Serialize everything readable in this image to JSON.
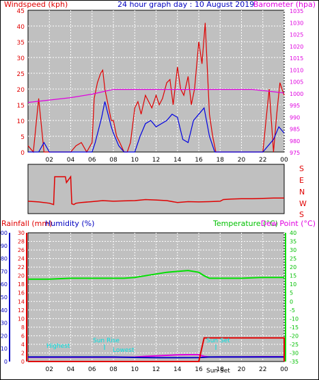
{
  "header": {
    "windspeed_label": "Windspeed (kph)",
    "title": "24 hour graph day : 10 August 2019",
    "barometer_label": "Barometer (hpa)"
  },
  "lower_header": {
    "rainfall_label": "Rainfall (mm)",
    "humidity_label": "Humidity (%)",
    "temperature_label": "Temperature (°C)",
    "dewpoint_label": "Dew Point (°C)"
  },
  "direction_labels": [
    "S",
    "E",
    "N",
    "W",
    "S"
  ],
  "annotations": {
    "highest": "Highest",
    "lowest": "Lowest",
    "sunrise": "Sun Rise",
    "sunset": "Sun Set",
    "sunset_tick": "Sun Set"
  },
  "colors": {
    "windspeed": "#e00000",
    "wind_avg": "#0000e0",
    "barometer": "#e000e0",
    "rain": "#e00000",
    "humidity": "#0000c0",
    "temperature": "#00e000",
    "dewpoint": "#e000e0",
    "plot_bg": "#c0c0c0",
    "grid": "#ffffff",
    "cyan": "#00e0e0"
  },
  "chart_data": [
    {
      "type": "line",
      "title": "24 hour graph day : 10 August 2019",
      "x_ticks": [
        "02",
        "04",
        "06",
        "08",
        "10",
        "12",
        "14",
        "16",
        "18",
        "20",
        "22",
        "00"
      ],
      "x_range_hours": [
        0,
        24
      ],
      "left_axis": {
        "label": "Windspeed (kph)",
        "range": [
          0,
          45
        ],
        "ticks": [
          0,
          5,
          10,
          15,
          20,
          25,
          30,
          35,
          40,
          45
        ]
      },
      "right_axis": {
        "label": "Barometer (hpa)",
        "range": [
          975,
          1035
        ],
        "ticks": [
          975,
          980,
          985,
          990,
          995,
          1000,
          1005,
          1010,
          1015,
          1020,
          1025,
          1030,
          1035
        ]
      },
      "grid": true,
      "series": [
        {
          "name": "Windspeed (kph)",
          "axis": "left",
          "x": [
            0,
            0.5,
            1,
            1.5,
            2,
            2.5,
            3,
            3.5,
            4,
            4.5,
            5,
            5.5,
            6,
            6.2,
            6.5,
            6.8,
            7,
            7.2,
            7.5,
            7.8,
            8,
            8.3,
            8.6,
            9,
            9.3,
            9.6,
            10,
            10.3,
            10.6,
            11,
            11.3,
            11.6,
            12,
            12.3,
            12.6,
            13,
            13.3,
            13.6,
            14,
            14.3,
            14.6,
            15,
            15.3,
            15.6,
            16,
            16.3,
            16.6,
            17,
            17.3,
            17.6,
            18,
            19,
            20,
            21,
            22,
            22.3,
            22.6,
            23,
            23.3,
            23.6,
            24
          ],
          "values": [
            2,
            0,
            17,
            0,
            0,
            0,
            0,
            0,
            0,
            2,
            3,
            0,
            3,
            17,
            22,
            25,
            26,
            20,
            15,
            10,
            10,
            5,
            3,
            0,
            0,
            3,
            14,
            16,
            12,
            18,
            16,
            14,
            18,
            15,
            17,
            22,
            23,
            15,
            27,
            20,
            18,
            24,
            15,
            20,
            35,
            28,
            41,
            12,
            5,
            0,
            0,
            0,
            0,
            0,
            0,
            10,
            20,
            0,
            12,
            22,
            18
          ]
        },
        {
          "name": "Wind average",
          "axis": "left",
          "x": [
            0,
            1,
            1.5,
            2,
            3,
            4,
            5,
            6,
            6.3,
            6.6,
            6.9,
            7.2,
            7.5,
            7.8,
            8,
            8.5,
            9,
            10,
            10.5,
            11,
            11.5,
            12,
            12.5,
            13,
            13.5,
            14,
            14.5,
            15,
            15.5,
            16,
            16.5,
            17,
            17.5,
            18,
            19,
            20,
            21,
            22,
            22.5,
            23,
            23.5,
            24
          ],
          "values": [
            0,
            0,
            3,
            0,
            0,
            0,
            0,
            0,
            3,
            7,
            11,
            16,
            12,
            8,
            6,
            2,
            0,
            0,
            5,
            9,
            10,
            8,
            9,
            10,
            12,
            11,
            4,
            3,
            10,
            12,
            14,
            5,
            0,
            0,
            0,
            0,
            0,
            0,
            2,
            4,
            8,
            6
          ]
        },
        {
          "name": "Barometer (hpa)",
          "axis": "right",
          "x": [
            0,
            2,
            4,
            6,
            7,
            8,
            9,
            10,
            11,
            12,
            13,
            14,
            15,
            16,
            17,
            18,
            19,
            20,
            21,
            22,
            23,
            24
          ],
          "values": [
            996,
            997,
            998,
            999.5,
            1000.5,
            1001.5,
            1001.5,
            1001.5,
            1001.5,
            1001.5,
            1001.5,
            1001.5,
            1001.5,
            1001.5,
            1001.5,
            1001.5,
            1001.5,
            1001.5,
            1001.5,
            1001,
            1000.5,
            1000
          ]
        }
      ]
    },
    {
      "type": "line",
      "title": "Wind direction",
      "y_labels": [
        "S",
        "E",
        "N",
        "W",
        "S"
      ],
      "x_range_hours": [
        0,
        24
      ],
      "series": [
        {
          "name": "Wind direction",
          "y_unit": "degrees (S=0, E=90, N=180, W=270, S=360)",
          "x": [
            0,
            1,
            2,
            2.4,
            2.5,
            3.5,
            3.6,
            4,
            4.1,
            4.3,
            4.5,
            5,
            6,
            7,
            8,
            9,
            10,
            11,
            12,
            13,
            14,
            15,
            16,
            17,
            18,
            18.3,
            19,
            20,
            21,
            22,
            23,
            24
          ],
          "values": [
            275,
            280,
            290,
            300,
            85,
            85,
            130,
            85,
            295,
            300,
            290,
            285,
            278,
            270,
            275,
            272,
            270,
            262,
            265,
            270,
            285,
            278,
            280,
            278,
            275,
            262,
            258,
            255,
            255,
            253,
            250,
            250
          ]
        }
      ]
    },
    {
      "type": "line",
      "x_ticks": [
        "02",
        "04",
        "06",
        "08",
        "10",
        "12",
        "14",
        "16",
        "18",
        "20",
        "22",
        "00"
      ],
      "x_range_hours": [
        0,
        24
      ],
      "axes": {
        "humidity": {
          "label": "Humidity (%)",
          "range": [
            0,
            100
          ],
          "ticks": [
            0,
            10,
            20,
            30,
            40,
            50,
            60,
            70,
            80,
            90,
            100
          ]
        },
        "rainfall": {
          "label": "Rainfall (mm)",
          "range": [
            0,
            30
          ],
          "ticks": [
            0,
            2,
            4,
            6,
            8,
            10,
            12,
            14,
            16,
            18,
            20,
            22,
            24,
            26,
            28,
            30
          ]
        },
        "temperature": {
          "label": "Temperature (°C)",
          "range": [
            -35,
            40
          ],
          "ticks": [
            40,
            35,
            30,
            25,
            20,
            15,
            10,
            5,
            0,
            -5,
            -10,
            -15,
            -20,
            -25,
            -30,
            -35
          ]
        }
      },
      "grid": true,
      "series": [
        {
          "name": "Temperature (°C)",
          "axis": "temperature",
          "x": [
            0,
            2,
            4,
            6,
            8,
            9,
            10,
            11,
            12,
            13,
            14,
            15,
            16,
            16.5,
            17,
            18,
            20,
            22,
            24
          ],
          "values": [
            13,
            13,
            13.5,
            13.5,
            13.5,
            13.5,
            14,
            15,
            16,
            17,
            17.5,
            18,
            17,
            15,
            13.5,
            13.5,
            13.5,
            14,
            14
          ]
        },
        {
          "name": "Dew Point (°C)",
          "axis": "temperature",
          "x": [
            0,
            2,
            4,
            6,
            8,
            9,
            10,
            11,
            12,
            13,
            14,
            15,
            16,
            16.5,
            17,
            18,
            20,
            22,
            24
          ],
          "values": [
            -32.5,
            -32.5,
            -32.5,
            -32.5,
            -32.5,
            -32.5,
            -32.4,
            -32,
            -31.7,
            -31.4,
            -31.1,
            -31,
            -31,
            -32,
            -32.4,
            -32.3,
            -32.3,
            -32.2,
            -32.2
          ]
        },
        {
          "name": "Humidity (%)",
          "axis": "humidity",
          "x": [
            0,
            2,
            4,
            6,
            8,
            10,
            12,
            14,
            16,
            17,
            18,
            20,
            22,
            24
          ],
          "values": [
            3.5,
            3.5,
            3.5,
            3.5,
            3.5,
            3.2,
            3,
            3,
            3.1,
            3.5,
            3.5,
            3.5,
            3.5,
            3.5
          ]
        },
        {
          "name": "Rainfall (mm)",
          "axis": "rainfall",
          "x": [
            0,
            16,
            16.5,
            17,
            24,
            24
          ],
          "values": [
            0,
            0,
            5.5,
            5.5,
            5.5,
            0
          ]
        }
      ]
    }
  ]
}
